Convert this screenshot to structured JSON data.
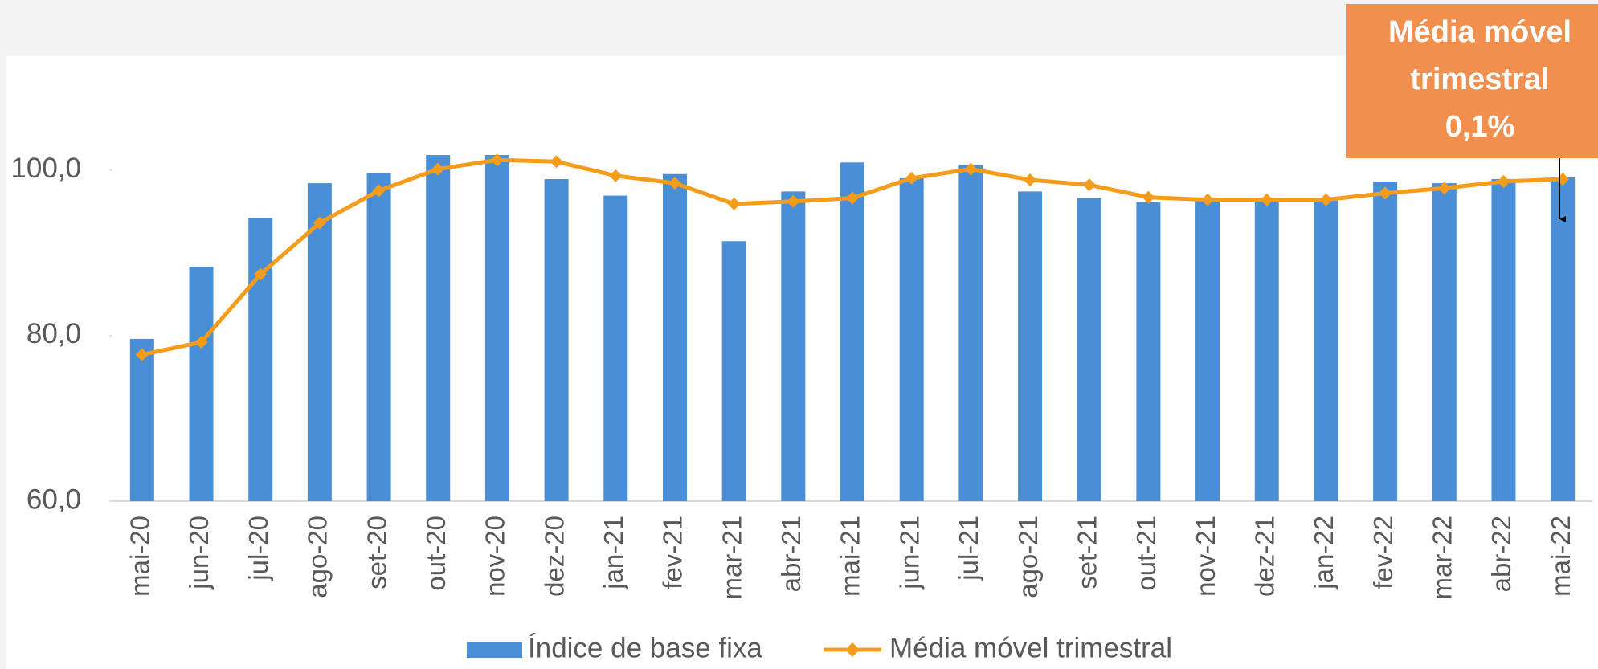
{
  "chart_data": {
    "type": "bar",
    "categories": [
      "mai-20",
      "jun-20",
      "jul-20",
      "ago-20",
      "set-20",
      "out-20",
      "nov-20",
      "dez-20",
      "jan-21",
      "fev-21",
      "mar-21",
      "abr-21",
      "mai-21",
      "jun-21",
      "jul-21",
      "ago-21",
      "set-21",
      "out-21",
      "nov-21",
      "dez-21",
      "jan-22",
      "fev-22",
      "mar-22",
      "abr-22",
      "mai-22"
    ],
    "series": [
      {
        "name": "Índice de base fixa",
        "type": "bar",
        "color": "#4a8fd6",
        "values": [
          79.6,
          88.3,
          94.2,
          98.4,
          99.6,
          101.8,
          101.8,
          98.9,
          96.9,
          99.5,
          91.4,
          97.4,
          100.9,
          99.0,
          100.6,
          97.4,
          96.6,
          96.1,
          96.3,
          96.3,
          96.3,
          98.6,
          98.4,
          98.9,
          99.1
        ]
      },
      {
        "name": "Média móvel trimestral",
        "type": "line",
        "color": "#f59c1a",
        "values": [
          77.7,
          79.2,
          87.4,
          93.6,
          97.5,
          100.1,
          101.2,
          101.0,
          99.3,
          98.4,
          95.9,
          96.2,
          96.6,
          99.0,
          100.1,
          98.8,
          98.2,
          96.7,
          96.4,
          96.4,
          96.4,
          97.2,
          97.8,
          98.6,
          98.9
        ]
      }
    ],
    "ylim": [
      60,
      110
    ],
    "yticks": [
      {
        "value": 60,
        "label": "60,0"
      },
      {
        "value": 80,
        "label": "80,0"
      },
      {
        "value": 100,
        "label": "100,0"
      }
    ],
    "annotation": [
      "Média móvel",
      "trimestral",
      "0,1%"
    ],
    "annotation_color": "#f08f4e",
    "legend": "bottom"
  }
}
